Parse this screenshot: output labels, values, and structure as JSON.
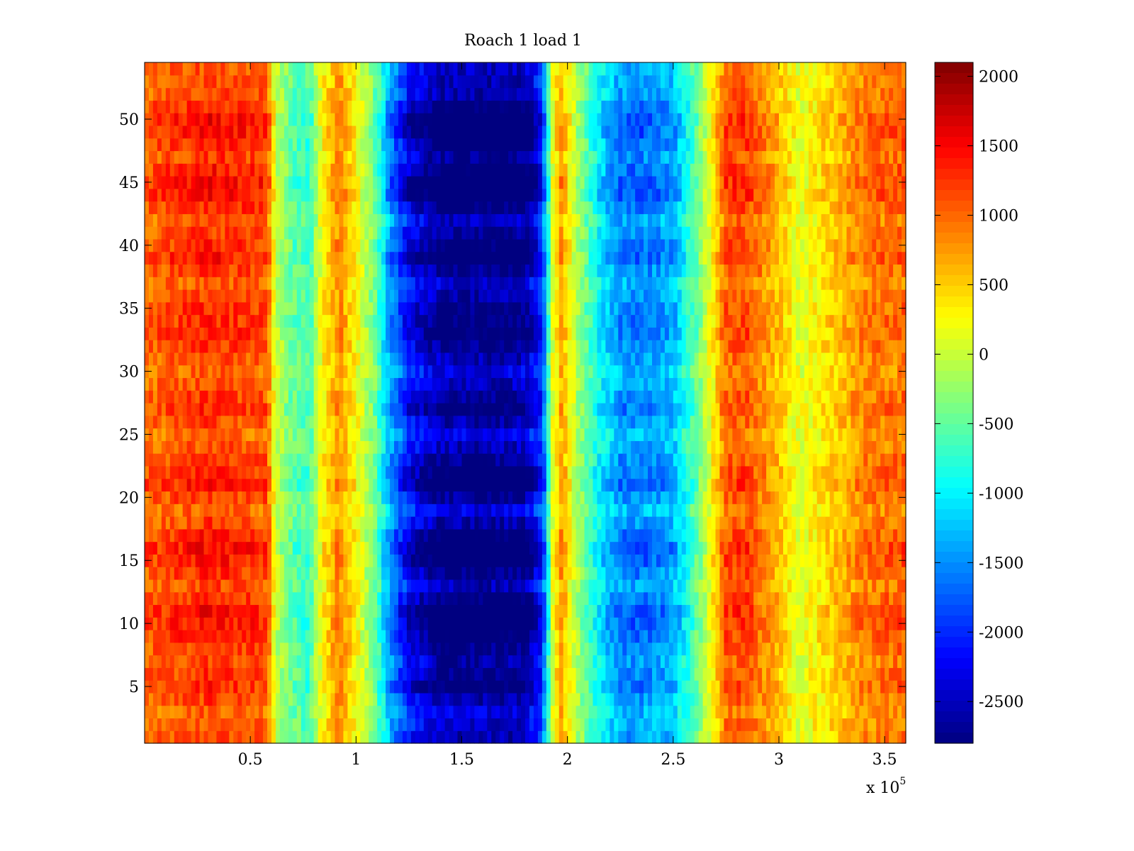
{
  "chart_data": {
    "type": "heatmap",
    "title": "Roach 1 load 1",
    "xlabel": "",
    "ylabel": "",
    "x_multiplier_label": {
      "base": "x 10",
      "exponent": "5"
    },
    "xlim": [
      0,
      3.6
    ],
    "ylim": [
      0.5,
      54.5
    ],
    "x_ticks": [
      0.5,
      1,
      1.5,
      2,
      2.5,
      3,
      3.5
    ],
    "x_tick_labels": [
      "0.5",
      "1",
      "1.5",
      "2",
      "2.5",
      "3",
      "3.5"
    ],
    "y_ticks": [
      5,
      10,
      15,
      20,
      25,
      30,
      35,
      40,
      45,
      50
    ],
    "y_tick_labels": [
      "5",
      "10",
      "15",
      "20",
      "25",
      "30",
      "35",
      "40",
      "45",
      "50"
    ],
    "rows": 54,
    "colormap": "jet",
    "clim": [
      -2800,
      2100
    ],
    "colorbar_ticks": [
      2000,
      1500,
      1000,
      500,
      0,
      -500,
      -1000,
      -1500,
      -2000,
      -2500
    ],
    "colorbar_tick_labels": [
      "2000",
      "1500",
      "1000",
      "500",
      "0",
      "-500",
      "-1000",
      "-1500",
      "-2000",
      "-2500"
    ],
    "column_profile": {
      "x": [
        0,
        0.3,
        0.58,
        0.62,
        0.7,
        0.78,
        0.84,
        0.92,
        1.0,
        1.1,
        1.16,
        1.25,
        1.4,
        1.6,
        1.8,
        1.88,
        1.93,
        1.97,
        2.05,
        2.15,
        2.25,
        2.35,
        2.5,
        2.6,
        2.68,
        2.75,
        2.85,
        3.0,
        3.1,
        3.2,
        3.3,
        3.4,
        3.6
      ],
      "values": [
        900,
        1150,
        1000,
        0,
        -450,
        -600,
        250,
        750,
        250,
        -500,
        -1300,
        -2000,
        -2450,
        -2500,
        -2450,
        -1800,
        100,
        650,
        -150,
        -900,
        -1350,
        -1400,
        -1200,
        -500,
        200,
        950,
        1000,
        500,
        100,
        350,
        550,
        800,
        900
      ]
    },
    "row_modulation": [
      {
        "row": 1,
        "value": 0.1
      },
      {
        "row": 3,
        "value": -0.15
      },
      {
        "row": 5,
        "value": 0.5
      },
      {
        "row": 7,
        "value": 0.15
      },
      {
        "row": 10,
        "value": 0.8
      },
      {
        "row": 11,
        "value": 0.9
      },
      {
        "row": 13,
        "value": 0.05
      },
      {
        "row": 15,
        "value": 0.75
      },
      {
        "row": 16,
        "value": 0.9
      },
      {
        "row": 19,
        "value": -0.2
      },
      {
        "row": 21,
        "value": 0.75
      },
      {
        "row": 22,
        "value": 0.6
      },
      {
        "row": 25,
        "value": -0.25
      },
      {
        "row": 27,
        "value": 0.5
      },
      {
        "row": 30,
        "value": -0.2
      },
      {
        "row": 33,
        "value": 0.55
      },
      {
        "row": 35,
        "value": 0.4
      },
      {
        "row": 37,
        "value": -0.1
      },
      {
        "row": 39,
        "value": 0.75
      },
      {
        "row": 42,
        "value": 0.05
      },
      {
        "row": 44,
        "value": 0.9
      },
      {
        "row": 45,
        "value": 0.95
      },
      {
        "row": 47,
        "value": 0.3
      },
      {
        "row": 49,
        "value": 0.85
      },
      {
        "row": 50,
        "value": 0.9
      },
      {
        "row": 52,
        "value": 0.15
      },
      {
        "row": 54,
        "value": 0.0
      }
    ],
    "legend": "colorbar-right"
  }
}
